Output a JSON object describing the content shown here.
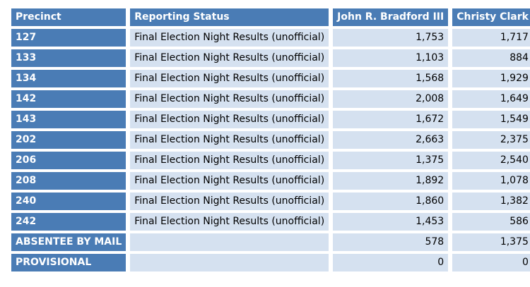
{
  "header": {
    "precinct": "Precinct",
    "status": "Reporting Status",
    "candidate1": "John R. Bradford III",
    "candidate2": "Christy Clark"
  },
  "rows": [
    {
      "precinct": "127",
      "status": "Final Election Night Results (unofficial)",
      "c1": "1,753",
      "c2": "1,717"
    },
    {
      "precinct": "133",
      "status": "Final Election Night Results (unofficial)",
      "c1": "1,103",
      "c2": "884"
    },
    {
      "precinct": "134",
      "status": "Final Election Night Results (unofficial)",
      "c1": "1,568",
      "c2": "1,929"
    },
    {
      "precinct": "142",
      "status": "Final Election Night Results (unofficial)",
      "c1": "2,008",
      "c2": "1,649"
    },
    {
      "precinct": "143",
      "status": "Final Election Night Results (unofficial)",
      "c1": "1,672",
      "c2": "1,549"
    },
    {
      "precinct": "202",
      "status": "Final Election Night Results (unofficial)",
      "c1": "2,663",
      "c2": "2,375"
    },
    {
      "precinct": "206",
      "status": "Final Election Night Results (unofficial)",
      "c1": "1,375",
      "c2": "2,540"
    },
    {
      "precinct": "208",
      "status": "Final Election Night Results (unofficial)",
      "c1": "1,892",
      "c2": "1,078"
    },
    {
      "precinct": "240",
      "status": "Final Election Night Results (unofficial)",
      "c1": "1,860",
      "c2": "1,382"
    },
    {
      "precinct": "242",
      "status": "Final Election Night Results (unofficial)",
      "c1": "1,453",
      "c2": "586"
    },
    {
      "precinct": "ABSENTEE BY MAIL",
      "status": "",
      "c1": "578",
      "c2": "1,375"
    },
    {
      "precinct": "PROVISIONAL",
      "status": "",
      "c1": "0",
      "c2": "0"
    }
  ],
  "colors": {
    "header_bg": "#4a7cb5",
    "cell_bg": "#d5e1f0",
    "header_text": "#ffffff"
  }
}
